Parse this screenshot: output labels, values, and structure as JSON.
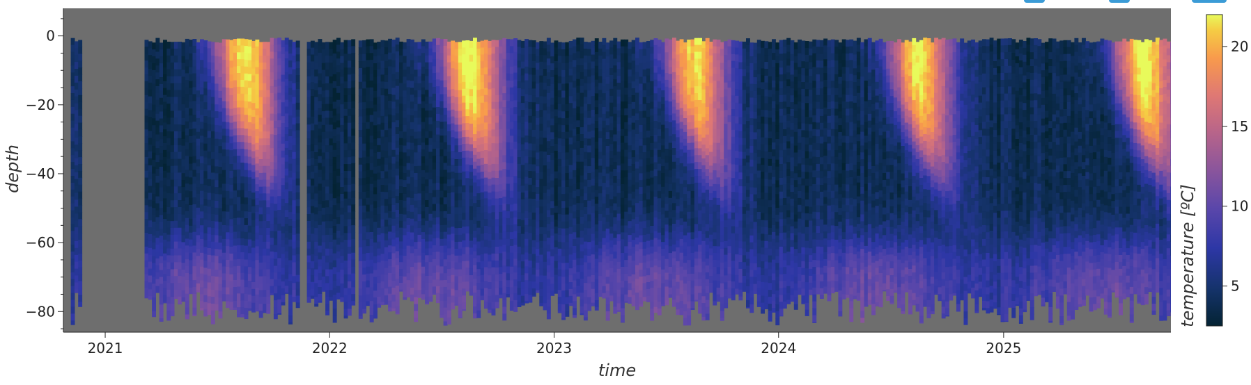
{
  "chart_data": {
    "type": "heatmap",
    "title": "",
    "xlabel": "time",
    "ylabel": "depth",
    "colorbar_label": "temperature  [ºC]",
    "colormap": "thermal",
    "x_range": [
      "2020-10-25",
      "2025-09-30"
    ],
    "y_range": [
      -86,
      8
    ],
    "color_range": [
      2.5,
      22
    ],
    "x_ticks": [
      {
        "value": "2021-01-01",
        "label": "2021"
      },
      {
        "value": "2022-01-01",
        "label": "2022"
      },
      {
        "value": "2023-01-01",
        "label": "2023"
      },
      {
        "value": "2024-01-01",
        "label": "2024"
      },
      {
        "value": "2025-01-01",
        "label": "2025"
      }
    ],
    "y_ticks": [
      0,
      -20,
      -40,
      -60,
      -80
    ],
    "y_tick_labels": [
      "0",
      "−20",
      "−40",
      "−60",
      "−80"
    ],
    "colorbar_ticks": [
      5,
      10,
      15,
      20
    ],
    "colorbar_tick_labels": [
      "5",
      "10",
      "15",
      "20"
    ],
    "missing_color": "#6e6e6e",
    "data_gaps": [
      {
        "start": "2020-10-25",
        "end": "2020-11-02"
      },
      {
        "start": "2020-11-22",
        "end": "2021-03-05"
      },
      {
        "start": "2021-11-12",
        "end": "2021-11-20"
      },
      {
        "start": "2022-02-10",
        "end": "2022-02-17"
      }
    ],
    "seasonal_surface_peaks_C": [
      {
        "time": "2021-08-05",
        "surface_temp": 21.5
      },
      {
        "time": "2022-08-10",
        "surface_temp": 22.0
      },
      {
        "time": "2023-08-10",
        "surface_temp": 20.5
      },
      {
        "time": "2024-08-10",
        "surface_temp": 21.0
      },
      {
        "time": "2025-08-10",
        "surface_temp": 21.5
      }
    ],
    "winter_minimum_C": 3.0,
    "bottom_layer_temp_C": [
      8,
      12
    ],
    "max_depth_m": -86
  },
  "toolbar": {
    "accent": "#3b9bd6"
  }
}
